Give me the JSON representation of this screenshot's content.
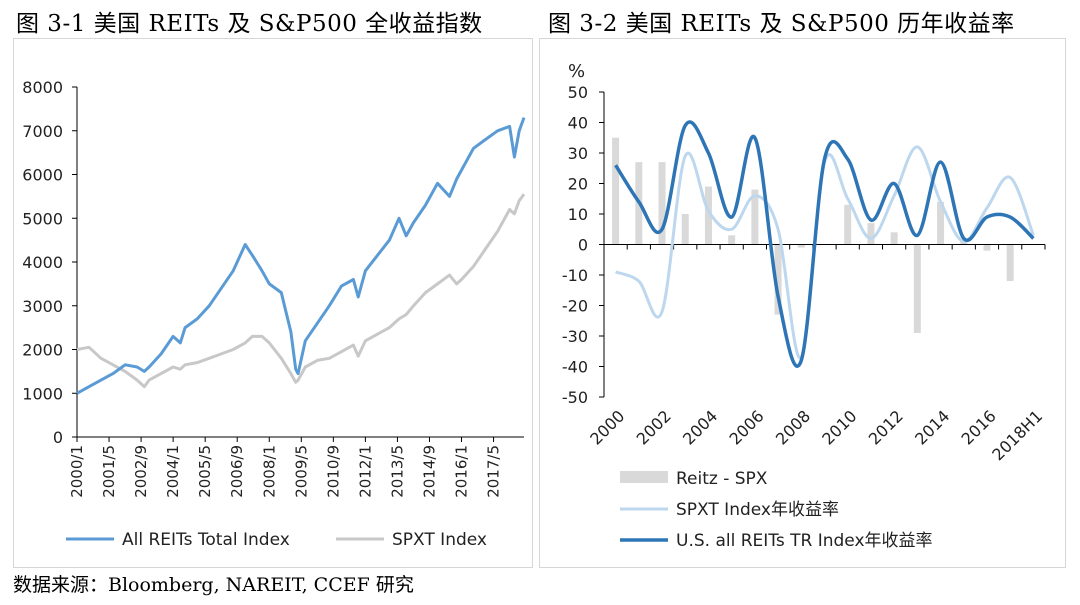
{
  "titles": {
    "left": "图 3-1 美国 REITs 及 S&P500 全收益指数",
    "right": "图 3-2 美国 REITs 及 S&P500 历年收益率"
  },
  "source_note": "数据来源：Bloomberg, NAREIT, CCEF 研究",
  "colors": {
    "reit": "#5b9bd5",
    "spxt": "#c8c8c8",
    "bar": "#d9d9d9",
    "spxt_light": "#bdd7ee",
    "reit_dark": "#2e75b6"
  },
  "chart_data": [
    {
      "type": "line",
      "title": "图 3-1 美国 REITs 及 S&P500 全收益指数",
      "ylim": [
        0,
        8000
      ],
      "yticks": [
        "0",
        "1000",
        "2000",
        "3000",
        "4000",
        "5000",
        "6000",
        "7000",
        "8000"
      ],
      "xticks": [
        "2000/1",
        "2001/5",
        "2002/9",
        "2004/1",
        "2005/5",
        "2006/9",
        "2008/1",
        "2009/5",
        "2010/9",
        "2012/1",
        "2013/5",
        "2014/9",
        "2016/1",
        "2017/5"
      ],
      "x": [
        2000.0,
        2000.5,
        2001.0,
        2001.5,
        2002.0,
        2002.5,
        2002.8,
        2003.0,
        2003.5,
        2004.0,
        2004.3,
        2004.5,
        2005.0,
        2005.5,
        2006.0,
        2006.5,
        2007.0,
        2007.3,
        2007.7,
        2008.0,
        2008.5,
        2008.9,
        2009.1,
        2009.2,
        2009.5,
        2010.0,
        2010.5,
        2011.0,
        2011.5,
        2011.7,
        2012.0,
        2012.5,
        2013.0,
        2013.4,
        2013.7,
        2014.0,
        2014.5,
        2015.0,
        2015.5,
        2015.8,
        2016.0,
        2016.5,
        2017.0,
        2017.5,
        2018.0,
        2018.2,
        2018.4,
        2018.6
      ],
      "series": [
        {
          "name": "All REITs Total Index",
          "values": [
            1000,
            1150,
            1300,
            1450,
            1650,
            1600,
            1500,
            1600,
            1900,
            2300,
            2150,
            2500,
            2700,
            3000,
            3400,
            3800,
            4400,
            4150,
            3800,
            3500,
            3300,
            2400,
            1550,
            1450,
            2200,
            2600,
            3000,
            3450,
            3600,
            3200,
            3800,
            4150,
            4500,
            5000,
            4600,
            4900,
            5300,
            5800,
            5500,
            5900,
            6100,
            6600,
            6800,
            7000,
            7100,
            6400,
            7000,
            7300
          ]
        },
        {
          "name": "SPXT Index",
          "values": [
            2000,
            2050,
            1800,
            1650,
            1500,
            1300,
            1150,
            1300,
            1450,
            1600,
            1550,
            1650,
            1700,
            1800,
            1900,
            2000,
            2150,
            2300,
            2300,
            2150,
            1800,
            1450,
            1250,
            1300,
            1600,
            1750,
            1800,
            1950,
            2100,
            1850,
            2200,
            2350,
            2500,
            2700,
            2800,
            3000,
            3300,
            3500,
            3700,
            3500,
            3600,
            3900,
            4300,
            4700,
            5200,
            5100,
            5400,
            5550
          ]
        }
      ],
      "legend": [
        "All REITs Total Index",
        "SPXT Index"
      ]
    },
    {
      "type": "bar+line",
      "title": "图 3-2 美国 REITs 及 S&P500 历年收益率",
      "ylabel": "%",
      "ylim": [
        -50,
        50
      ],
      "yticks": [
        "50",
        "40",
        "30",
        "20",
        "10",
        "0",
        "-10",
        "-20",
        "-30",
        "-40",
        "-50"
      ],
      "categories": [
        "2000",
        "2001",
        "2002",
        "2003",
        "2004",
        "2005",
        "2006",
        "2007",
        "2008",
        "2009",
        "2010",
        "2011",
        "2012",
        "2013",
        "2014",
        "2015",
        "2016",
        "2017",
        "2018H1"
      ],
      "xticks": [
        "2000",
        "2002",
        "2004",
        "2006",
        "2008",
        "2010",
        "2012",
        "2014",
        "2016",
        "2018H1"
      ],
      "series": [
        {
          "name": "Reitz - SPX",
          "kind": "bar",
          "values": [
            35,
            27,
            27,
            10,
            19,
            3,
            18,
            -23,
            -1,
            0,
            13,
            7,
            4,
            -29,
            14,
            1,
            -2,
            -12,
            0
          ]
        },
        {
          "name": "SPXT Index年收益率",
          "kind": "line",
          "values": [
            -9,
            -12,
            -22,
            29,
            11,
            5,
            16,
            5,
            -37,
            27,
            15,
            2,
            16,
            32,
            14,
            1,
            12,
            22,
            3
          ]
        },
        {
          "name": "U.S. all REITs TR Index年收益率",
          "kind": "line",
          "values": [
            26,
            14,
            5,
            39,
            30,
            9,
            35,
            -17,
            -38,
            28,
            28,
            8,
            20,
            3,
            27,
            2,
            9,
            9,
            2
          ]
        }
      ],
      "legend": [
        "Reitz - SPX",
        "SPXT Index年收益率",
        "U.S. all REITs TR Index年收益率"
      ]
    }
  ]
}
